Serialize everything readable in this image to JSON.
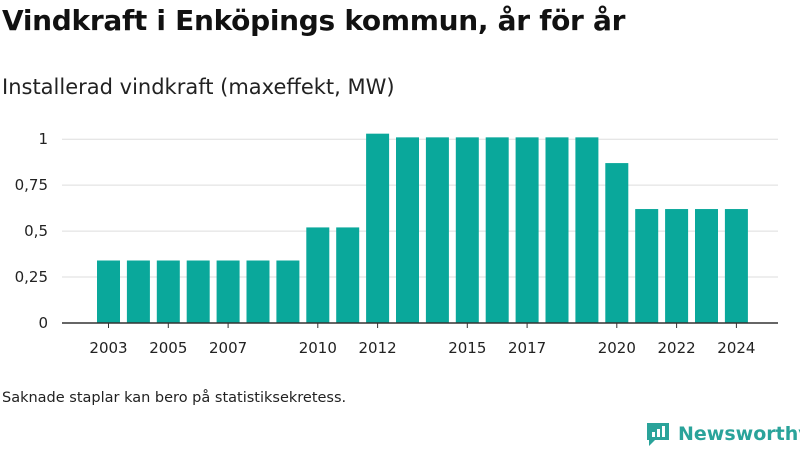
{
  "title": "Vindkraft i Enköpings kommun, år för år",
  "subtitle": "Installerad vindkraft (maxeffekt, MW)",
  "footnote": "Saknade staplar kan bero på statistiksekretess.",
  "brand": {
    "name": "Newsworthy",
    "icon": "newsworthy-logo-icon"
  },
  "colors": {
    "bar": "#0aa89b",
    "grid": "#dddddd",
    "axis": "#333333"
  },
  "chart_data": {
    "type": "bar",
    "title": "Vindkraft i Enköpings kommun, år för år",
    "subtitle": "Installerad vindkraft (maxeffekt, MW)",
    "xlabel": "",
    "ylabel": "",
    "categories": [
      "2003",
      "2004",
      "2005",
      "2006",
      "2007",
      "2008",
      "2009",
      "2010",
      "2011",
      "2012",
      "2013",
      "2014",
      "2015",
      "2016",
      "2017",
      "2018",
      "2019",
      "2020",
      "2021",
      "2022",
      "2023",
      "2024"
    ],
    "values": [
      0.34,
      0.34,
      0.34,
      0.34,
      0.34,
      0.34,
      0.34,
      0.52,
      0.52,
      1.03,
      1.01,
      1.01,
      1.01,
      1.01,
      1.01,
      1.01,
      1.01,
      0.87,
      0.62,
      0.62,
      0.62,
      0.62
    ],
    "x_tick_labels": [
      "2003",
      "2005",
      "2007",
      "2010",
      "2012",
      "2015",
      "2017",
      "2020",
      "2022",
      "2024"
    ],
    "y_ticks": [
      0,
      0.25,
      0.5,
      0.75,
      1
    ],
    "y_tick_labels": [
      "0",
      "0,25",
      "0,5",
      "0,75",
      "1"
    ],
    "ylim": [
      0,
      1.05
    ],
    "grid": true,
    "legend": "none"
  }
}
